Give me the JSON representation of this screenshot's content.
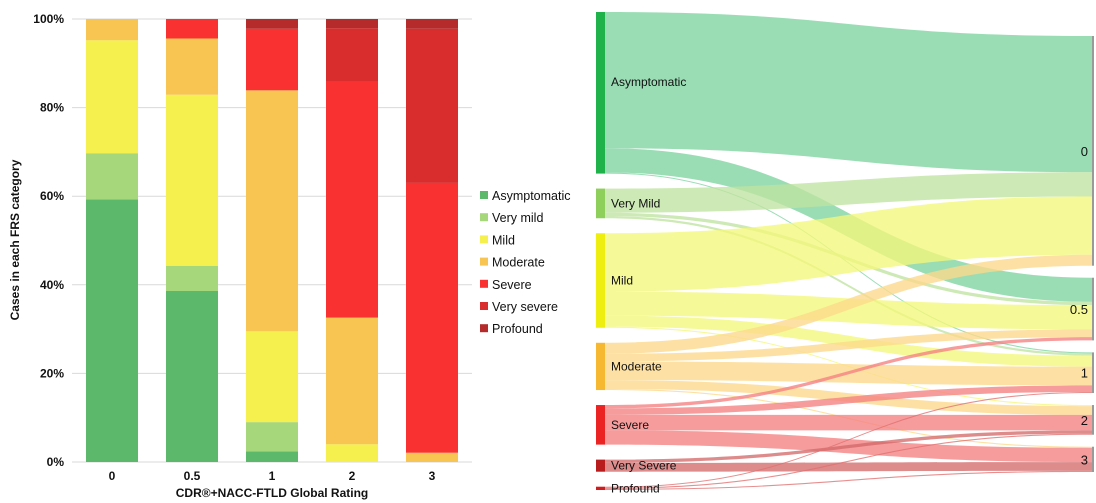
{
  "chart_data": [
    {
      "type": "bar",
      "stacked": true,
      "percent": true,
      "categories": [
        "0",
        "0.5",
        "1",
        "2",
        "3"
      ],
      "xlabel": "CDR®+NACC-FTLD Global Rating",
      "ylabel": "Cases in each FRS category",
      "ylim": [
        0,
        100
      ],
      "yticks": [
        "0%",
        "20%",
        "40%",
        "60%",
        "80%",
        "100%"
      ],
      "legend_position": "right",
      "series": [
        {
          "name": "Asymptomatic",
          "color": "#5cb86a",
          "values": [
            59.3,
            38.6,
            2.4,
            0,
            0
          ]
        },
        {
          "name": "Very mild",
          "color": "#a6d77a",
          "values": [
            10.4,
            5.7,
            6.6,
            0,
            0
          ]
        },
        {
          "name": "Mild",
          "color": "#f5f04e",
          "values": [
            25.5,
            38.6,
            20.5,
            4.0,
            0
          ]
        },
        {
          "name": "Moderate",
          "color": "#f8c553",
          "values": [
            4.8,
            12.7,
            54.4,
            28.6,
            2.1
          ]
        },
        {
          "name": "Severe",
          "color": "#f93131",
          "values": [
            0,
            4.4,
            13.9,
            53.2,
            60.9
          ]
        },
        {
          "name": "Very severe",
          "color": "#d92c2c",
          "values": [
            0,
            0,
            0,
            12.1,
            34.8
          ]
        },
        {
          "name": "Profound",
          "color": "#b52b2b",
          "values": [
            0,
            0,
            2.2,
            2.1,
            2.2
          ]
        }
      ]
    },
    {
      "type": "sankey",
      "sources": [
        {
          "name": "Asymptomatic",
          "color": "#1fb14a",
          "band": "#7dd3a0"
        },
        {
          "name": "Very Mild",
          "color": "#8dcf5a",
          "band": "#bfe3a0"
        },
        {
          "name": "Mild",
          "color": "#eeee10",
          "band": "#f4f77a"
        },
        {
          "name": "Moderate",
          "color": "#f5b830",
          "band": "#fcd98a"
        },
        {
          "name": "Severe",
          "color": "#ec2323",
          "band": "#f58080"
        },
        {
          "name": "Very Severe",
          "color": "#b81c1c",
          "band": "#d46a6a"
        },
        {
          "name": "Profound",
          "color": "#d01c1c",
          "band": "#e07070"
        }
      ],
      "targets": [
        "0",
        "0.5",
        "1",
        "2",
        "3"
      ],
      "flows": [
        {
          "source": 0,
          "target": 0,
          "value": 124
        },
        {
          "source": 0,
          "target": 1,
          "value": 22
        },
        {
          "source": 0,
          "target": 2,
          "value": 1
        },
        {
          "source": 1,
          "target": 0,
          "value": 22
        },
        {
          "source": 1,
          "target": 1,
          "value": 3
        },
        {
          "source": 1,
          "target": 2,
          "value": 2
        },
        {
          "source": 2,
          "target": 0,
          "value": 53
        },
        {
          "source": 2,
          "target": 1,
          "value": 22
        },
        {
          "source": 2,
          "target": 2,
          "value": 10
        },
        {
          "source": 2,
          "target": 3,
          "value": 1
        },
        {
          "source": 3,
          "target": 0,
          "value": 10
        },
        {
          "source": 3,
          "target": 1,
          "value": 7
        },
        {
          "source": 3,
          "target": 2,
          "value": 17
        },
        {
          "source": 3,
          "target": 3,
          "value": 8
        },
        {
          "source": 3,
          "target": 4,
          "value": 1
        },
        {
          "source": 4,
          "target": 1,
          "value": 3
        },
        {
          "source": 4,
          "target": 2,
          "value": 6
        },
        {
          "source": 4,
          "target": 3,
          "value": 14
        },
        {
          "source": 4,
          "target": 4,
          "value": 13
        },
        {
          "source": 5,
          "target": 3,
          "value": 3
        },
        {
          "source": 5,
          "target": 4,
          "value": 8
        },
        {
          "source": 6,
          "target": 2,
          "value": 1
        },
        {
          "source": 6,
          "target": 3,
          "value": 1
        },
        {
          "source": 6,
          "target": 4,
          "value": 1
        }
      ]
    }
  ]
}
